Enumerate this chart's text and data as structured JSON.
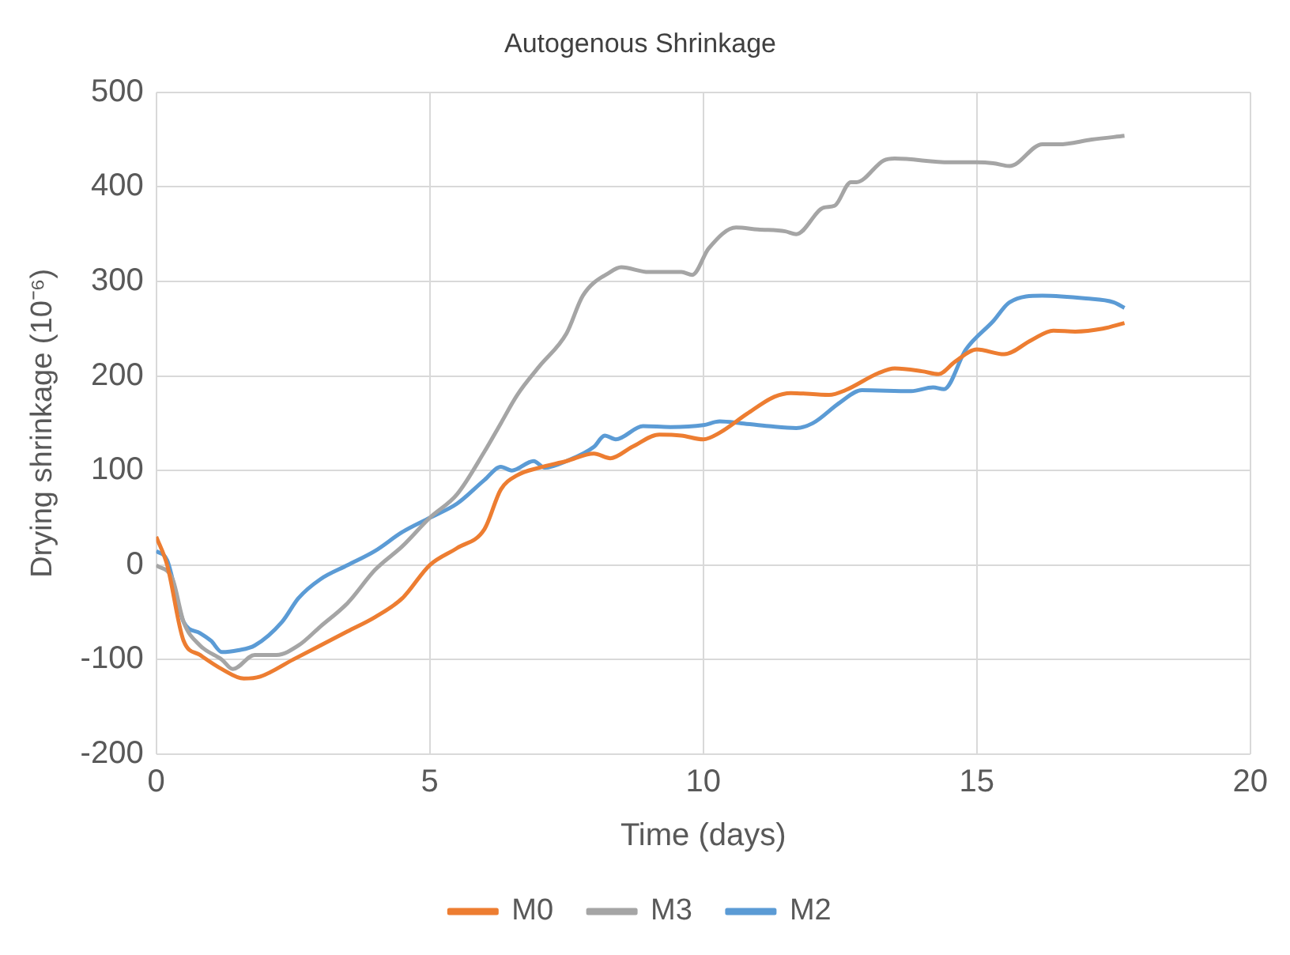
{
  "chart_data": {
    "type": "line",
    "title": "Autogenous Shrinkage",
    "xlabel": "Time (days)",
    "ylabel": "Drying shrinkage (10⁻⁶)",
    "xlim": [
      0,
      20
    ],
    "xticks": [
      0,
      5,
      10,
      15,
      20
    ],
    "ylim": [
      -200,
      500
    ],
    "yticks": [
      -200,
      -100,
      0,
      100,
      200,
      300,
      400,
      500
    ],
    "grid": true,
    "legend": "bottom",
    "marker": "none",
    "line_style": "solid",
    "series": [
      {
        "name": "M0",
        "color": "#ed7d31",
        "x": [
          0,
          0.2,
          0.5,
          0.8,
          1.2,
          1.6,
          1.9,
          2.5,
          3,
          3.5,
          4,
          4.5,
          5,
          5.5,
          6,
          6.3,
          6.6,
          7,
          7.5,
          8,
          8.3,
          8.7,
          9.2,
          9.6,
          10,
          10.3,
          10.8,
          11.3,
          11.6,
          12.3,
          12.6,
          13.2,
          13.5,
          14,
          14.3,
          14.6,
          15,
          15.5,
          16,
          16.4,
          16.8,
          17.3,
          17.7
        ],
        "values": [
          30,
          0,
          -80,
          -95,
          -110,
          -120,
          -118,
          -100,
          -85,
          -70,
          -55,
          -35,
          0,
          18,
          38,
          80,
          95,
          103,
          110,
          118,
          113,
          125,
          138,
          137,
          133,
          140,
          160,
          178,
          182,
          180,
          185,
          203,
          208,
          205,
          202,
          215,
          228,
          223,
          238,
          248,
          247,
          250,
          256
        ]
      },
      {
        "name": "M3",
        "color": "#a5a5a5",
        "x": [
          0,
          0.3,
          0.5,
          0.8,
          1.2,
          1.4,
          1.8,
          2.2,
          2.6,
          3,
          3.5,
          4,
          4.5,
          5,
          5.5,
          6,
          6.3,
          6.6,
          7,
          7.5,
          7.8,
          8.3,
          8.5,
          9,
          9.6,
          9.8,
          10.1,
          10.6,
          11,
          11.5,
          11.7,
          12.2,
          12.4,
          12.7,
          12.8,
          13.3,
          13.5,
          14.5,
          15,
          15.3,
          15.6,
          16.2,
          16.5,
          17.1,
          17.7
        ],
        "values": [
          0,
          -15,
          -60,
          -85,
          -100,
          -110,
          -95,
          -95,
          -85,
          -65,
          -40,
          -5,
          20,
          50,
          75,
          120,
          150,
          180,
          210,
          245,
          285,
          310,
          315,
          310,
          310,
          307,
          335,
          357,
          355,
          353,
          350,
          378,
          380,
          405,
          405,
          428,
          430,
          426,
          426,
          425,
          422,
          445,
          445,
          450,
          454
        ]
      },
      {
        "name": "M2",
        "color": "#5b9bd5",
        "x": [
          0,
          0.2,
          0.5,
          0.8,
          1,
          1.2,
          1.5,
          1.8,
          2.3,
          2.6,
          3,
          3.5,
          4,
          4.5,
          5,
          5.5,
          6,
          6.3,
          6.5,
          6.9,
          7.1,
          7.5,
          8,
          8.2,
          8.4,
          8.9,
          9.4,
          10,
          10.3,
          10.7,
          11.2,
          11.7,
          12,
          12.5,
          12.9,
          13.8,
          14.2,
          14.4,
          14.8,
          15.3,
          15.6,
          16.2,
          17,
          17.5,
          17.7
        ],
        "values": [
          15,
          5,
          -60,
          -72,
          -80,
          -92,
          -90,
          -85,
          -60,
          -35,
          -15,
          0,
          15,
          35,
          50,
          65,
          90,
          104,
          100,
          110,
          103,
          110,
          125,
          137,
          133,
          147,
          146,
          148,
          152,
          150,
          147,
          145,
          150,
          172,
          185,
          184,
          188,
          186,
          228,
          258,
          278,
          285,
          282,
          278,
          272
        ]
      }
    ]
  }
}
